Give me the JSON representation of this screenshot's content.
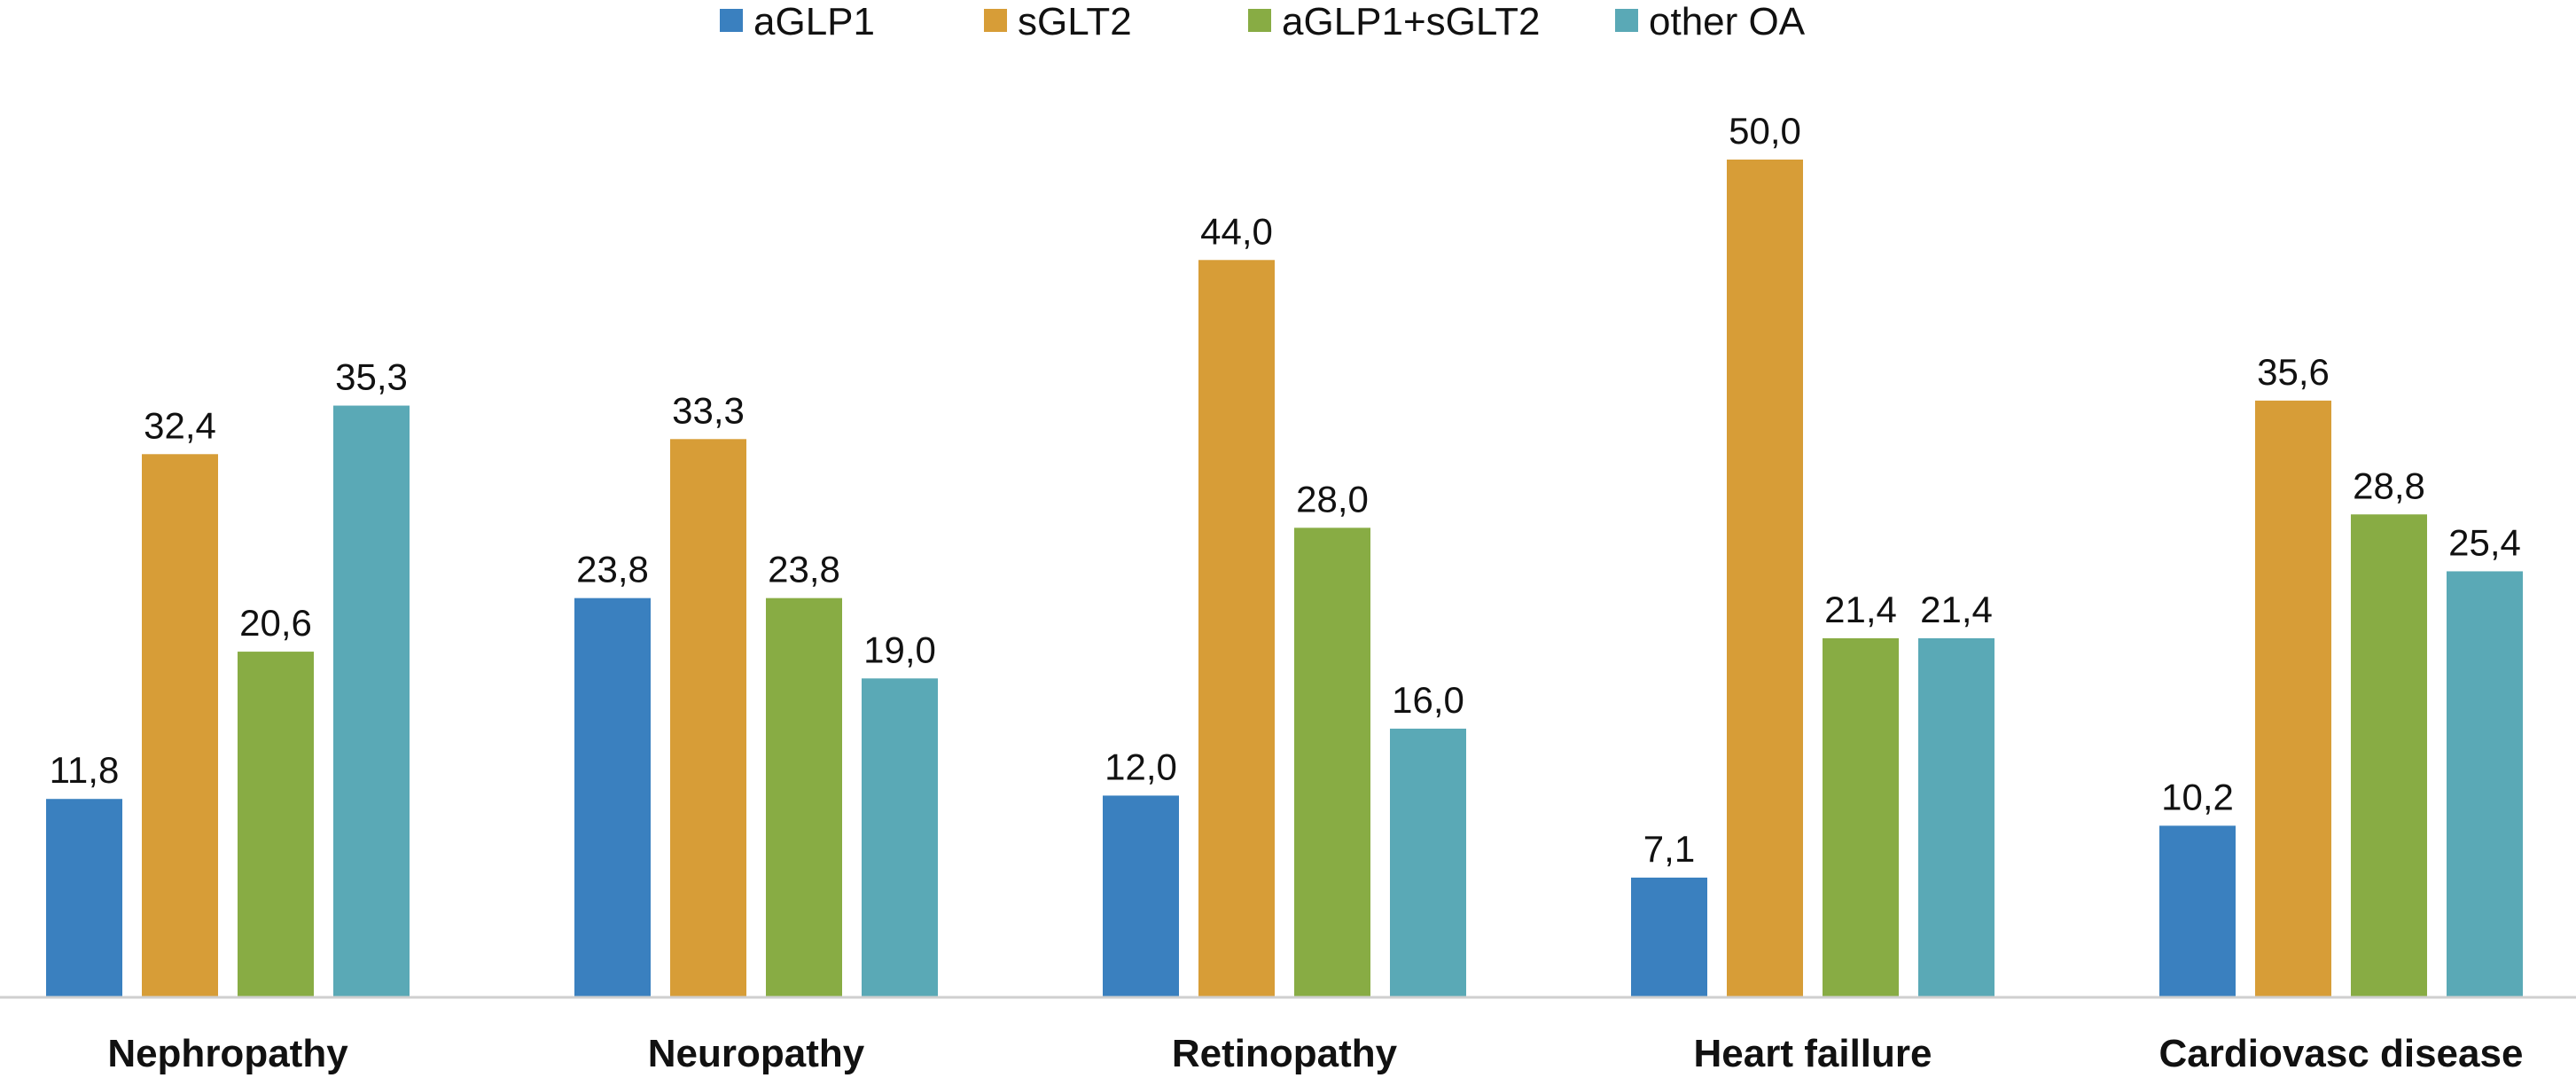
{
  "chart_data": {
    "type": "bar",
    "title": "",
    "xlabel": "",
    "ylabel": "",
    "ylim": [
      0,
      56
    ],
    "grid": false,
    "legend_position": "top-center",
    "categories": [
      "Nephropathy",
      "Neuropathy",
      "Retinopathy",
      "Heart faillure",
      "Cardiovasc disease"
    ],
    "series": [
      {
        "name": "aGLP1",
        "color": "#3a80bf",
        "values": [
          11.8,
          23.8,
          12.0,
          7.1,
          10.2
        ],
        "labels": [
          "11,8",
          "23,8",
          "12,0",
          "7,1",
          "10,2"
        ]
      },
      {
        "name": "sGLT2",
        "color": "#d79d37",
        "values": [
          32.4,
          33.3,
          44.0,
          50.0,
          35.6
        ],
        "labels": [
          "32,4",
          "33,3",
          "44,0",
          "50,0",
          "35,6"
        ]
      },
      {
        "name": "aGLP1+sGLT2",
        "color": "#88ac44",
        "values": [
          20.6,
          23.8,
          28.0,
          21.4,
          28.8
        ],
        "labels": [
          "20,6",
          "23,8",
          "28,0",
          "21,4",
          "28,8"
        ]
      },
      {
        "name": "other OA",
        "color": "#5aa9b6",
        "values": [
          35.3,
          19.0,
          16.0,
          21.4,
          25.4
        ],
        "labels": [
          "35,3",
          "19,0",
          "16,0",
          "21,4",
          "25,4"
        ]
      }
    ]
  }
}
